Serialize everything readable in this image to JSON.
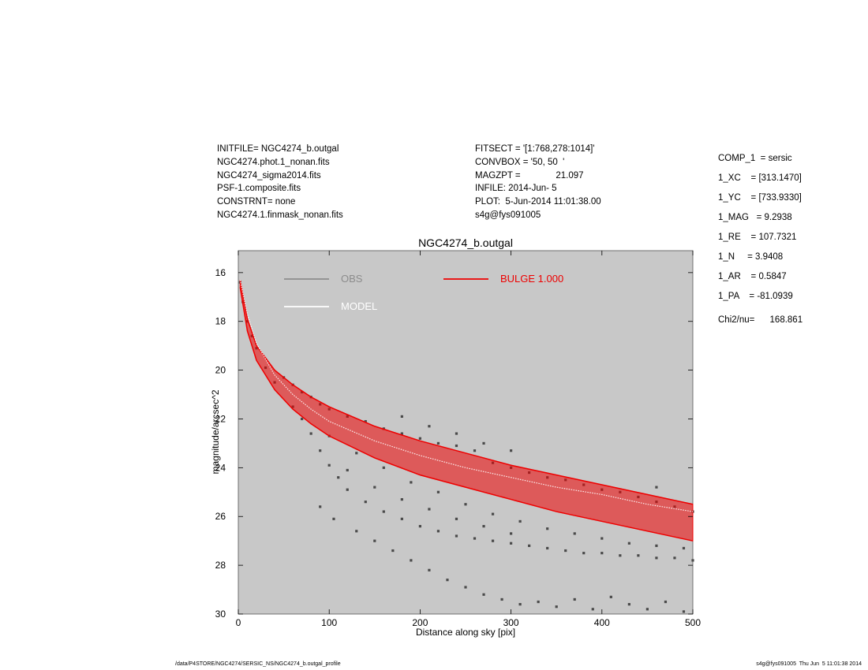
{
  "header_left": [
    "INITFILE= NGC4274_b.outgal",
    "NGC4274.phot.1_nonan.fits",
    "NGC4274_sigma2014.fits",
    "PSF-1.composite.fits",
    "CONSTRNT= none",
    "NGC4274.1.finmask_nonan.fits"
  ],
  "header_mid": [
    "FITSECT = '[1:768,278:1014]'",
    "CONVBOX = '50, 50  '",
    "MAGZPT =              21.097",
    "INFILE: 2014-Jun- 5",
    "PLOT:  5-Jun-2014 11:01:38.00",
    "s4g@fys091005"
  ],
  "params": [
    "COMP_1  = sersic",
    "1_XC    = [313.1470]",
    "1_YC    = [733.9330]",
    "1_MAG   = 9.2938",
    "1_RE    = 107.7321",
    "1_N     = 3.9408",
    "1_AR    = 0.5847",
    "1_PA    = -81.0939"
  ],
  "chi2": "Chi2/nu=      168.861",
  "footer_left": "/data/P4STORE/NGC4274/SERSIC_NS/NGC4274_b.outgal_profile",
  "footer_right": "s4g@fys091005  Thu Jun  5 11:01:38 2014",
  "colors": {
    "plot_bg": "#c8c8c8",
    "obs": "#4a4a4a",
    "obs_legend": "#8c8c8c",
    "model": "#ffffff",
    "bulge": "#ee0000"
  },
  "chart_data": {
    "type": "scatter",
    "title": "NGC4274_b.outgal",
    "xlabel": "Distance along sky [pix]",
    "ylabel": "magnitude/arcsec^2",
    "xlim": [
      0,
      500
    ],
    "ylim": [
      30,
      15.1
    ],
    "y_inverted": true,
    "x_ticks": [
      0,
      100,
      200,
      300,
      400,
      500
    ],
    "y_ticks": [
      16,
      18,
      20,
      22,
      24,
      26,
      28,
      30
    ],
    "legend": [
      "OBS",
      "MODEL",
      "BULGE  1.000"
    ],
    "legend_placement": "top",
    "series": [
      {
        "name": "OBS",
        "points": [
          [
            2,
            16.4
          ],
          [
            5,
            17.2
          ],
          [
            10,
            18.0
          ],
          [
            15,
            18.6
          ],
          [
            20,
            19.1
          ],
          [
            30,
            19.9
          ],
          [
            40,
            20.5
          ],
          [
            50,
            20.3
          ],
          [
            60,
            20.6
          ],
          [
            70,
            20.9
          ],
          [
            80,
            21.1
          ],
          [
            90,
            21.4
          ],
          [
            100,
            21.6
          ],
          [
            120,
            21.9
          ],
          [
            140,
            22.1
          ],
          [
            160,
            22.4
          ],
          [
            180,
            22.6
          ],
          [
            200,
            22.8
          ],
          [
            220,
            23.0
          ],
          [
            240,
            23.1
          ],
          [
            260,
            23.3
          ],
          [
            280,
            23.8
          ],
          [
            300,
            24.0
          ],
          [
            320,
            24.2
          ],
          [
            340,
            24.4
          ],
          [
            360,
            24.5
          ],
          [
            380,
            24.7
          ],
          [
            400,
            24.9
          ],
          [
            420,
            25.0
          ],
          [
            440,
            25.2
          ],
          [
            460,
            25.4
          ],
          [
            480,
            25.6
          ],
          [
            500,
            25.8
          ],
          [
            60,
            21.5
          ],
          [
            70,
            22.0
          ],
          [
            80,
            22.6
          ],
          [
            90,
            23.3
          ],
          [
            100,
            23.9
          ],
          [
            110,
            24.4
          ],
          [
            120,
            24.9
          ],
          [
            140,
            25.4
          ],
          [
            160,
            25.8
          ],
          [
            180,
            26.1
          ],
          [
            200,
            26.4
          ],
          [
            220,
            26.6
          ],
          [
            240,
            26.8
          ],
          [
            260,
            26.9
          ],
          [
            280,
            27.0
          ],
          [
            300,
            27.1
          ],
          [
            320,
            27.2
          ],
          [
            340,
            27.3
          ],
          [
            360,
            27.4
          ],
          [
            380,
            27.5
          ],
          [
            400,
            27.5
          ],
          [
            420,
            27.6
          ],
          [
            440,
            27.6
          ],
          [
            460,
            27.7
          ],
          [
            480,
            27.7
          ],
          [
            500,
            27.8
          ],
          [
            90,
            25.6
          ],
          [
            105,
            26.1
          ],
          [
            130,
            26.6
          ],
          [
            150,
            27.0
          ],
          [
            170,
            27.4
          ],
          [
            190,
            27.8
          ],
          [
            210,
            28.2
          ],
          [
            230,
            28.6
          ],
          [
            250,
            28.9
          ],
          [
            270,
            29.2
          ],
          [
            290,
            29.4
          ],
          [
            310,
            29.6
          ],
          [
            330,
            29.5
          ],
          [
            350,
            29.7
          ],
          [
            370,
            29.4
          ],
          [
            390,
            29.8
          ],
          [
            410,
            29.3
          ],
          [
            430,
            29.6
          ],
          [
            450,
            29.8
          ],
          [
            470,
            29.5
          ],
          [
            490,
            29.9
          ],
          [
            100,
            22.7
          ],
          [
            130,
            23.4
          ],
          [
            160,
            24.0
          ],
          [
            190,
            24.6
          ],
          [
            220,
            25.0
          ],
          [
            250,
            25.5
          ],
          [
            280,
            25.9
          ],
          [
            310,
            26.2
          ],
          [
            340,
            26.5
          ],
          [
            370,
            26.7
          ],
          [
            400,
            26.9
          ],
          [
            430,
            27.1
          ],
          [
            460,
            27.2
          ],
          [
            490,
            27.3
          ],
          [
            120,
            24.1
          ],
          [
            150,
            24.8
          ],
          [
            180,
            25.3
          ],
          [
            210,
            25.7
          ],
          [
            240,
            26.1
          ],
          [
            270,
            26.4
          ],
          [
            300,
            26.7
          ],
          [
            460,
            24.8
          ],
          [
            300,
            23.3
          ],
          [
            270,
            23.0
          ],
          [
            240,
            22.6
          ],
          [
            210,
            22.3
          ],
          [
            180,
            21.9
          ]
        ]
      },
      {
        "name": "MODEL",
        "points": [
          [
            2,
            16.3
          ],
          [
            10,
            17.7
          ],
          [
            20,
            18.9
          ],
          [
            40,
            20.2
          ],
          [
            60,
            21.0
          ],
          [
            80,
            21.6
          ],
          [
            100,
            22.1
          ],
          [
            150,
            22.9
          ],
          [
            200,
            23.5
          ],
          [
            250,
            24.0
          ],
          [
            300,
            24.4
          ],
          [
            350,
            24.8
          ],
          [
            400,
            25.1
          ],
          [
            450,
            25.5
          ],
          [
            500,
            25.8
          ]
        ]
      },
      {
        "name": "BULGE  1.000",
        "band_upper": [
          [
            2,
            16.3
          ],
          [
            10,
            17.9
          ],
          [
            20,
            19.0
          ],
          [
            40,
            20.0
          ],
          [
            60,
            20.6
          ],
          [
            80,
            21.1
          ],
          [
            100,
            21.5
          ],
          [
            150,
            22.3
          ],
          [
            200,
            22.9
          ],
          [
            250,
            23.4
          ],
          [
            300,
            23.9
          ],
          [
            350,
            24.3
          ],
          [
            400,
            24.7
          ],
          [
            450,
            25.1
          ],
          [
            500,
            25.5
          ]
        ],
        "band_lower": [
          [
            2,
            16.6
          ],
          [
            10,
            18.4
          ],
          [
            20,
            19.6
          ],
          [
            40,
            20.8
          ],
          [
            60,
            21.6
          ],
          [
            80,
            22.2
          ],
          [
            100,
            22.7
          ],
          [
            150,
            23.6
          ],
          [
            200,
            24.3
          ],
          [
            250,
            24.8
          ],
          [
            300,
            25.3
          ],
          [
            350,
            25.8
          ],
          [
            400,
            26.2
          ],
          [
            450,
            26.6
          ],
          [
            500,
            27.0
          ]
        ]
      }
    ]
  }
}
